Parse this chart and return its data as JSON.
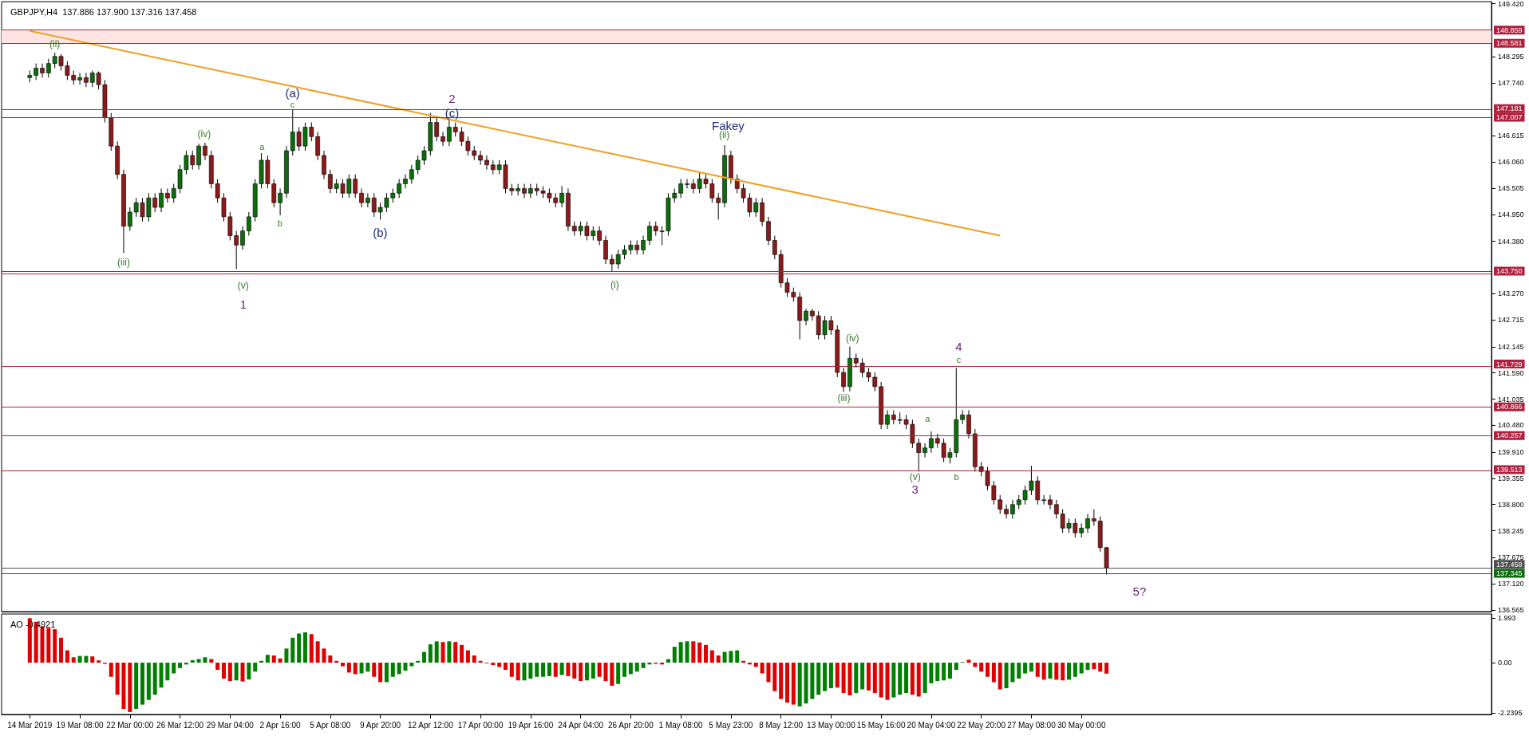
{
  "chart_data": [
    {
      "type": "candlestick",
      "title": "GBPJPY,H4  137.886 137.900 137.316 137.458",
      "tick_labels": "y",
      "ylim": [
        136.53,
        149.46
      ],
      "yticks": [
        {
          "value": 149.42,
          "label": "149.420"
        },
        148.295,
        {
          "value": 147.74,
          "label": "147.740"
        },
        146.615,
        {
          "value": 146.06,
          "label": "146.060"
        },
        145.505,
        {
          "value": 144.95,
          "label": "144.950"
        },
        {
          "value": 144.38,
          "label": "144.380"
        },
        {
          "value": 143.27,
          "label": "143.270"
        },
        142.715,
        142.145,
        {
          "value": 141.59,
          "label": "141.590"
        },
        141.035,
        {
          "value": 140.48,
          "label": "140.480"
        },
        {
          "value": 139.91,
          "label": "139.910"
        },
        139.355,
        {
          "value": 138.8,
          "label": "138.800"
        },
        138.245,
        137.675,
        {
          "value": 137.12,
          "label": "137.120"
        },
        136.565
      ],
      "categories": [
        null,
        null,
        null,
        null,
        null,
        null,
        null,
        null,
        null,
        null,
        null,
        null,
        null,
        null,
        null,
        null,
        null,
        null,
        null,
        null,
        null,
        null,
        null,
        null,
        null,
        null,
        null,
        null,
        null,
        null,
        null,
        null,
        null,
        null,
        null,
        null,
        null,
        null,
        null,
        null,
        null,
        null,
        null,
        null,
        null,
        null,
        null,
        null,
        null,
        null,
        null,
        null,
        null,
        null,
        null,
        null,
        null,
        null,
        null,
        null,
        null,
        null,
        null,
        null,
        null,
        null,
        null,
        null,
        null,
        null,
        null,
        null,
        null,
        null,
        null,
        null,
        null,
        null,
        null,
        null,
        null,
        null,
        null,
        null,
        null,
        null,
        null,
        null,
        null,
        null,
        null,
        null,
        null,
        null,
        null,
        null,
        null,
        null,
        null,
        null,
        null,
        null,
        null,
        null,
        null,
        null,
        null,
        null,
        null,
        null,
        null,
        null,
        null,
        null,
        null,
        null,
        null,
        null,
        null,
        null,
        null,
        null,
        null,
        null,
        null,
        null,
        null,
        null,
        null,
        null,
        null,
        null,
        null,
        null,
        null,
        null,
        null,
        null,
        null,
        null,
        null,
        null,
        null,
        null,
        null,
        null,
        null,
        null,
        null,
        null,
        null,
        null,
        null,
        null,
        null,
        null,
        null,
        null,
        null,
        null,
        null,
        null,
        null,
        null,
        null,
        null,
        null,
        null,
        null,
        null,
        null,
        null,
        null,
        null,
        null,
        null,
        null,
        null,
        null,
        null,
        null,
        null,
        null,
        null,
        null,
        null,
        null,
        null,
        null,
        null,
        null,
        null,
        null,
        null,
        null,
        null,
        null,
        null,
        null,
        null,
        null,
        null,
        null,
        null,
        null,
        null,
        null,
        null,
        null,
        null,
        null,
        null,
        null,
        null,
        null,
        null,
        null,
        null,
        null,
        null,
        null,
        null,
        null,
        null,
        null,
        null,
        null,
        null,
        null,
        null,
        null,
        null,
        null,
        null,
        null,
        null,
        null,
        null
      ],
      "ohlc": [
        null,
        null,
        null,
        null,
        [
          147.85,
          148.0,
          147.75,
          147.9
        ],
        [
          147.9,
          148.15,
          147.8,
          148.05
        ],
        [
          148.05,
          148.15,
          147.85,
          147.95
        ],
        [
          147.95,
          148.25,
          147.85,
          148.15
        ],
        [
          148.15,
          148.38,
          148.05,
          148.3
        ],
        [
          148.3,
          148.35,
          148.0,
          148.1
        ],
        [
          148.1,
          148.2,
          147.8,
          147.9
        ],
        [
          147.9,
          148.0,
          147.7,
          147.8
        ],
        [
          147.8,
          147.95,
          147.7,
          147.85
        ],
        [
          147.85,
          147.95,
          147.65,
          147.75
        ],
        [
          147.75,
          148.0,
          147.65,
          147.95
        ],
        [
          147.95,
          147.98,
          147.6,
          147.7
        ],
        [
          147.7,
          147.8,
          146.9,
          147.0
        ],
        [
          147.0,
          147.1,
          146.3,
          146.4
        ],
        [
          146.4,
          146.5,
          145.7,
          145.8
        ],
        [
          145.8,
          145.9,
          144.13,
          144.7
        ],
        [
          144.7,
          145.1,
          144.6,
          145.0
        ],
        [
          145.0,
          145.3,
          144.9,
          145.2
        ],
        [
          145.2,
          145.3,
          144.8,
          144.9
        ],
        [
          144.9,
          145.4,
          144.8,
          145.3
        ],
        [
          145.3,
          145.4,
          145.0,
          145.1
        ],
        [
          145.1,
          145.5,
          145.0,
          145.4
        ],
        [
          145.4,
          145.5,
          145.2,
          145.3
        ],
        [
          145.3,
          145.6,
          145.2,
          145.5
        ],
        [
          145.5,
          146.0,
          145.4,
          145.9
        ],
        [
          145.9,
          146.3,
          145.8,
          146.2
        ],
        [
          146.2,
          146.3,
          145.9,
          146.0
        ],
        [
          146.0,
          146.45,
          145.9,
          146.4
        ],
        [
          146.4,
          146.47,
          146.1,
          146.2
        ],
        [
          146.2,
          146.3,
          145.5,
          145.6
        ],
        [
          145.6,
          145.7,
          145.2,
          145.3
        ],
        [
          145.3,
          145.4,
          144.8,
          144.9
        ],
        [
          144.9,
          145.0,
          144.4,
          144.5
        ],
        [
          144.5,
          144.6,
          143.79,
          144.3
        ],
        [
          144.3,
          144.7,
          144.2,
          144.6
        ],
        [
          144.6,
          145.0,
          144.5,
          144.9
        ],
        [
          144.9,
          145.7,
          144.8,
          145.6
        ],
        [
          145.6,
          146.25,
          145.5,
          146.1
        ],
        [
          146.1,
          146.2,
          145.5,
          145.6
        ],
        [
          145.6,
          145.7,
          145.1,
          145.2
        ],
        [
          145.2,
          145.5,
          144.93,
          145.4
        ],
        [
          145.4,
          146.4,
          145.3,
          146.3
        ],
        [
          146.3,
          147.17,
          146.2,
          146.7
        ],
        [
          146.7,
          146.8,
          146.3,
          146.4
        ],
        [
          146.4,
          146.9,
          146.3,
          146.8
        ],
        [
          146.8,
          146.9,
          146.5,
          146.6
        ],
        [
          146.6,
          146.7,
          146.1,
          146.2
        ],
        [
          146.2,
          146.3,
          145.7,
          145.8
        ],
        [
          145.8,
          145.9,
          145.4,
          145.5
        ],
        [
          145.5,
          145.7,
          145.4,
          145.6
        ],
        [
          145.6,
          145.7,
          145.3,
          145.4
        ],
        [
          145.4,
          145.8,
          145.3,
          145.7
        ],
        [
          145.7,
          145.8,
          145.3,
          145.4
        ],
        [
          145.4,
          145.5,
          145.1,
          145.2
        ],
        [
          145.2,
          145.4,
          145.1,
          145.3
        ],
        [
          145.3,
          145.4,
          144.9,
          145.0
        ],
        [
          145.0,
          145.2,
          144.84,
          145.1
        ],
        [
          145.1,
          145.4,
          145.0,
          145.3
        ],
        [
          145.3,
          145.5,
          145.2,
          145.4
        ],
        [
          145.4,
          145.7,
          145.3,
          145.6
        ],
        [
          145.6,
          145.8,
          145.5,
          145.7
        ],
        [
          145.7,
          146.0,
          145.6,
          145.9
        ],
        [
          145.9,
          146.2,
          145.8,
          146.1
        ],
        [
          146.1,
          146.4,
          146.0,
          146.3
        ],
        [
          146.3,
          147.1,
          146.2,
          146.9
        ],
        [
          146.9,
          147.0,
          146.5,
          146.6
        ],
        [
          146.6,
          146.7,
          146.4,
          146.5
        ],
        [
          146.5,
          147.01,
          146.4,
          146.8
        ],
        [
          146.8,
          146.9,
          146.6,
          146.7
        ],
        [
          146.7,
          146.8,
          146.4,
          146.5
        ],
        [
          146.5,
          146.6,
          146.2,
          146.3
        ],
        [
          146.3,
          146.4,
          146.1,
          146.2
        ],
        [
          146.2,
          146.3,
          146.0,
          146.1
        ],
        [
          146.1,
          146.2,
          145.9,
          146.0
        ],
        [
          146.0,
          146.1,
          145.8,
          145.9
        ],
        [
          145.9,
          146.1,
          145.8,
          146.0
        ],
        [
          146.0,
          146.1,
          145.4,
          145.5
        ],
        [
          145.5,
          145.6,
          145.35,
          145.45
        ],
        [
          145.45,
          145.6,
          145.35,
          145.5
        ],
        [
          145.5,
          145.6,
          145.3,
          145.4
        ],
        [
          145.4,
          145.6,
          145.3,
          145.5
        ],
        [
          145.5,
          145.6,
          145.35,
          145.45
        ],
        [
          145.45,
          145.55,
          145.3,
          145.4
        ],
        [
          145.4,
          145.5,
          145.2,
          145.3
        ],
        [
          145.3,
          145.4,
          145.1,
          145.2
        ],
        [
          145.2,
          145.55,
          145.1,
          145.4
        ],
        [
          145.4,
          145.5,
          144.6,
          144.7
        ],
        [
          144.7,
          144.8,
          144.5,
          144.6
        ],
        [
          144.6,
          144.8,
          144.5,
          144.7
        ],
        [
          144.7,
          144.8,
          144.4,
          144.5
        ],
        [
          144.5,
          144.7,
          144.4,
          144.6
        ],
        [
          144.6,
          144.7,
          144.3,
          144.4
        ],
        [
          144.4,
          144.5,
          143.9,
          144.0
        ],
        [
          144.0,
          144.1,
          143.74,
          143.9
        ],
        [
          143.9,
          144.2,
          143.8,
          144.1
        ],
        [
          144.1,
          144.3,
          144.0,
          144.2
        ],
        [
          144.2,
          144.4,
          144.1,
          144.3
        ],
        [
          144.3,
          144.4,
          144.1,
          144.2
        ],
        [
          144.2,
          144.5,
          144.1,
          144.4
        ],
        [
          144.4,
          144.8,
          144.3,
          144.7
        ],
        [
          144.7,
          144.8,
          144.5,
          144.6
        ],
        [
          144.6,
          144.7,
          144.3,
          144.6
        ],
        [
          144.6,
          145.4,
          144.5,
          145.3
        ],
        [
          145.3,
          145.5,
          145.2,
          145.4
        ],
        [
          145.4,
          145.7,
          145.3,
          145.6
        ],
        [
          145.6,
          145.7,
          145.5,
          145.6
        ],
        [
          145.6,
          145.7,
          145.4,
          145.5
        ],
        [
          145.5,
          145.85,
          145.4,
          145.7
        ],
        [
          145.7,
          145.8,
          145.5,
          145.6
        ],
        [
          145.6,
          145.7,
          145.2,
          145.3
        ],
        [
          145.3,
          145.4,
          144.84,
          145.2
        ],
        [
          145.2,
          146.42,
          145.1,
          146.2
        ],
        [
          146.2,
          146.3,
          145.6,
          145.7
        ],
        [
          145.7,
          145.8,
          145.4,
          145.5
        ],
        [
          145.5,
          145.6,
          145.2,
          145.3
        ],
        [
          145.3,
          145.4,
          144.9,
          145.0
        ],
        [
          145.0,
          145.3,
          144.9,
          145.2
        ],
        [
          145.2,
          145.3,
          144.7,
          144.8
        ],
        [
          144.8,
          144.9,
          144.3,
          144.4
        ],
        [
          144.4,
          144.5,
          144.0,
          144.1
        ],
        [
          144.1,
          144.2,
          143.4,
          143.5
        ],
        [
          143.5,
          143.6,
          143.2,
          143.3
        ],
        [
          143.3,
          143.4,
          143.1,
          143.2
        ],
        [
          143.2,
          143.3,
          142.3,
          142.7
        ],
        [
          142.7,
          142.95,
          142.6,
          142.9
        ],
        [
          142.9,
          142.95,
          142.7,
          142.8
        ],
        [
          142.8,
          142.9,
          142.3,
          142.4
        ],
        [
          142.4,
          142.8,
          142.3,
          142.7
        ],
        [
          142.7,
          142.8,
          142.4,
          142.5
        ],
        [
          142.5,
          142.6,
          141.5,
          141.6
        ],
        [
          141.6,
          141.7,
          141.19,
          141.3
        ],
        [
          141.3,
          142.15,
          141.2,
          141.9
        ],
        [
          141.9,
          142.0,
          141.7,
          141.8
        ],
        [
          141.8,
          141.9,
          141.5,
          141.6
        ],
        [
          141.6,
          141.7,
          141.4,
          141.5
        ],
        [
          141.5,
          141.6,
          141.2,
          141.3
        ],
        [
          141.3,
          141.4,
          140.4,
          140.5
        ],
        [
          140.5,
          140.8,
          140.4,
          140.7
        ],
        [
          140.7,
          140.8,
          140.5,
          140.6
        ],
        [
          140.6,
          140.75,
          140.5,
          140.6
        ],
        [
          140.6,
          140.7,
          140.4,
          140.5
        ],
        [
          140.5,
          140.6,
          140.0,
          140.1
        ],
        [
          140.1,
          140.2,
          139.5,
          139.9
        ],
        [
          139.9,
          140.1,
          139.8,
          140.0
        ],
        [
          140.0,
          140.35,
          139.9,
          140.2
        ],
        [
          140.2,
          140.3,
          140.0,
          140.1
        ],
        [
          140.1,
          140.2,
          139.7,
          139.8
        ],
        [
          139.8,
          140.0,
          139.67,
          139.9
        ],
        [
          139.9,
          141.7,
          139.8,
          140.6
        ],
        [
          140.6,
          140.8,
          140.5,
          140.7
        ],
        [
          140.7,
          140.8,
          140.2,
          140.3
        ],
        [
          140.3,
          140.4,
          139.5,
          139.6
        ],
        [
          139.6,
          139.7,
          139.4,
          139.5
        ],
        [
          139.5,
          139.6,
          139.1,
          139.2
        ],
        [
          139.2,
          139.3,
          138.8,
          138.9
        ],
        [
          138.9,
          139.0,
          138.6,
          138.7
        ],
        [
          138.7,
          138.8,
          138.5,
          138.6
        ],
        [
          138.6,
          138.9,
          138.5,
          138.8
        ],
        [
          138.8,
          139.0,
          138.7,
          138.9
        ],
        [
          138.9,
          139.2,
          138.8,
          139.1
        ],
        [
          139.1,
          139.62,
          139.0,
          139.3
        ],
        [
          139.3,
          139.4,
          138.8,
          138.9
        ],
        [
          138.9,
          139.0,
          138.8,
          138.9
        ],
        [
          138.9,
          139.0,
          138.7,
          138.8
        ],
        [
          138.8,
          138.9,
          138.5,
          138.6
        ],
        [
          138.6,
          138.7,
          138.2,
          138.3
        ],
        [
          138.3,
          138.5,
          138.2,
          138.4
        ],
        [
          138.4,
          138.5,
          138.1,
          138.2
        ],
        [
          138.2,
          138.4,
          138.1,
          138.3
        ],
        [
          138.3,
          138.6,
          138.2,
          138.5
        ],
        [
          138.5,
          138.7,
          138.35,
          138.45
        ],
        [
          138.45,
          138.55,
          137.8,
          137.886
        ],
        [
          137.886,
          137.9,
          137.316,
          137.458
        ],
        null,
        null,
        null,
        null,
        null,
        null,
        null,
        null,
        null,
        null,
        null,
        null,
        null,
        null,
        null,
        null,
        null,
        null,
        null,
        null,
        null,
        null,
        null,
        null,
        null,
        null,
        null,
        null,
        null,
        null,
        null,
        null,
        null,
        null,
        null,
        null,
        null,
        null,
        null,
        null,
        null,
        null,
        null,
        null,
        null,
        null,
        null,
        null,
        null,
        null,
        null,
        null,
        null,
        null,
        null,
        null,
        null,
        null,
        null,
        null,
        null
      ],
      "series": [
        {
          "type": "line",
          "color": "#f0a020",
          "values": [
            null,
            null,
            null,
            null,
            148.84,
            null,
            null,
            null,
            null,
            null,
            null,
            null,
            null,
            null,
            null,
            null,
            null,
            null,
            null,
            null,
            null,
            null,
            null,
            null,
            null,
            null,
            null,
            null,
            null,
            null,
            null,
            null,
            null,
            null,
            null,
            null,
            null,
            null,
            null,
            null,
            null,
            null,
            null,
            null,
            null,
            null,
            null,
            null,
            null,
            null,
            null,
            null,
            null,
            null,
            null,
            null,
            null,
            null,
            null,
            null,
            null,
            null,
            null,
            null,
            null,
            null,
            null,
            null,
            null,
            null,
            null,
            null,
            null,
            null,
            null,
            null,
            null,
            null,
            null,
            null,
            null,
            null,
            null,
            null,
            null,
            null,
            null,
            null,
            null,
            null,
            null,
            null,
            null,
            null,
            null,
            null,
            null,
            null,
            null,
            null,
            null,
            null,
            null,
            null,
            null,
            null,
            null,
            null,
            null,
            null,
            null,
            null,
            null,
            null,
            null,
            null,
            null,
            null,
            null,
            null,
            null,
            null,
            null,
            null,
            null,
            null,
            null,
            null,
            null,
            null,
            null,
            null,
            null,
            null,
            null,
            null,
            null,
            null,
            null,
            null,
            null,
            null,
            null,
            null,
            null,
            null,
            null,
            null,
            null,
            null,
            null,
            null,
            null,
            null,
            null,
            null,
            null,
            null,
            null,
            144.5,
            null,
            null,
            null,
            null,
            null,
            null,
            null,
            null,
            null,
            null,
            null,
            null,
            null,
            null,
            null,
            null,
            null,
            null,
            null,
            null,
            null,
            null,
            null,
            null,
            null,
            null,
            null,
            null,
            null,
            null,
            null,
            null,
            null,
            null,
            null,
            null,
            null,
            null,
            null,
            null,
            null,
            null,
            null,
            null,
            null,
            null,
            null,
            null,
            null,
            null,
            null,
            null,
            null,
            null,
            null,
            null,
            null,
            null,
            null,
            null,
            null,
            null,
            null,
            null,
            null,
            null,
            null,
            null,
            null,
            null,
            null,
            null,
            null,
            null,
            null,
            null,
            null,
            null
          ]
        }
      ],
      "bands": [
        {
          "axis": "y",
          "from": 148.581,
          "to": 148.859,
          "color": "#ffe4e4"
        }
      ],
      "ref_lines": [
        {
          "axis": "y",
          "value": 148.859,
          "label": "148.859",
          "color": "#b0203e"
        },
        {
          "axis": "y",
          "value": 148.581,
          "label": "148.581",
          "color": "#b0203e"
        },
        {
          "axis": "y",
          "value": 147.181,
          "label": "147.181",
          "color": "#b0203e"
        },
        {
          "axis": "y",
          "value": 147.007,
          "label": "147.007",
          "color": "#b0203e"
        },
        {
          "axis": "y",
          "value": 143.75,
          "label": "143.750",
          "color": "#b0203e"
        },
        {
          "axis": "y",
          "value": 143.7,
          "label": null,
          "color": "#b0203e"
        },
        {
          "axis": "y",
          "value": 141.729,
          "label": "141.729",
          "color": "#b0203e"
        },
        {
          "axis": "y",
          "value": 140.866,
          "label": "140.866",
          "color": "#b0203e"
        },
        {
          "axis": "y",
          "value": 140.257,
          "label": "140.257",
          "color": "#b0203e"
        },
        {
          "axis": "y",
          "value": 139.513,
          "label": "139.513",
          "color": "#b0203e"
        },
        {
          "axis": "y",
          "value": 137.458,
          "label": "137.458",
          "color": "#505050"
        },
        {
          "axis": "y",
          "value": 137.345,
          "label": "137.345",
          "color": "#106a10"
        }
      ],
      "annotations": [
        "(ii)",
        "(iii)",
        "(iv)",
        "(v)",
        "1",
        "a",
        "b",
        "c",
        "(a)",
        "(b)",
        "2",
        "(c)",
        "(i)",
        "Fakey",
        "(ii)",
        "(iii)",
        "(iv)",
        "(v)",
        "3",
        "a",
        "b",
        "c",
        "4",
        "5?"
      ]
    },
    {
      "type": "bar",
      "title": "AO -0.4921",
      "ylim": [
        -2.31,
        2.17
      ],
      "yticks": [
        1.993,
        {
          "value": 0,
          "label": "0.00"
        },
        -2.2395
      ],
      "categories": [
        null,
        null,
        null,
        null,
        "14 Mar 2019",
        null,
        null,
        null,
        null,
        null,
        null,
        null,
        "19 Mar 08:00",
        null,
        null,
        null,
        null,
        null,
        null,
        null,
        "22 Mar 00:00",
        null,
        null,
        null,
        null,
        null,
        null,
        null,
        "26 Mar 12:00",
        null,
        null,
        null,
        null,
        null,
        null,
        null,
        "29 Mar 04:00",
        null,
        null,
        null,
        null,
        null,
        null,
        null,
        "2 Apr 16:00",
        null,
        null,
        null,
        null,
        null,
        null,
        null,
        "5 Apr 08:00",
        null,
        null,
        null,
        null,
        null,
        null,
        null,
        "9 Apr 20:00",
        null,
        null,
        null,
        null,
        null,
        null,
        null,
        "12 Apr 12:00",
        null,
        null,
        null,
        null,
        null,
        null,
        null,
        "17 Apr 00:00",
        null,
        null,
        null,
        null,
        null,
        null,
        null,
        "19 Apr 16:00",
        null,
        null,
        null,
        null,
        null,
        null,
        null,
        "24 Apr 04:00",
        null,
        null,
        null,
        null,
        null,
        null,
        null,
        "26 Apr 20:00",
        null,
        null,
        null,
        null,
        null,
        null,
        null,
        "1 May 08:00",
        null,
        null,
        null,
        null,
        null,
        null,
        null,
        "5 May 23:00",
        null,
        null,
        null,
        null,
        null,
        null,
        null,
        "8 May 12:00",
        null,
        null,
        null,
        null,
        null,
        null,
        null,
        "13 May 00:00",
        null,
        null,
        null,
        null,
        null,
        null,
        null,
        "15 May 16:00",
        null,
        null,
        null,
        null,
        null,
        null,
        null,
        "20 May 04:00",
        null,
        null,
        null,
        null,
        null,
        null,
        null,
        "22 May 20:00",
        null,
        null,
        null,
        null,
        null,
        null,
        null,
        "27 May 08:00",
        null,
        null,
        null,
        null,
        null,
        null,
        null,
        "30 May 00:00",
        null,
        null,
        null,
        null,
        null,
        null,
        null,
        null,
        null,
        null,
        null,
        null,
        null,
        null,
        null,
        null,
        null,
        null,
        null,
        null,
        null,
        null,
        null,
        null,
        null,
        null,
        null,
        null,
        null,
        null,
        null,
        null,
        null,
        null,
        null,
        null,
        null,
        null,
        null,
        null,
        null,
        null,
        null,
        null,
        null,
        null,
        null,
        null,
        null,
        null,
        null,
        null,
        null,
        null,
        null,
        null,
        null,
        null,
        null,
        null,
        null,
        null,
        null,
        null,
        null
      ],
      "values": [
        null,
        null,
        null,
        null,
        1.98,
        1.82,
        1.62,
        1.55,
        1.49,
        1.11,
        0.55,
        0.24,
        0.3,
        0.3,
        0.28,
        0.1,
        -0.05,
        -0.63,
        -1.43,
        -2.06,
        -2.2,
        -2.06,
        -1.87,
        -1.66,
        -1.43,
        -1.11,
        -0.79,
        -0.48,
        -0.24,
        -0.08,
        0.11,
        0.16,
        0.24,
        0.16,
        -0.32,
        -0.71,
        -0.82,
        -0.79,
        -0.84,
        -0.75,
        -0.4,
        0.08,
        0.35,
        0.32,
        0.19,
        0.63,
        1.11,
        1.3,
        1.35,
        1.27,
        0.95,
        0.63,
        0.32,
        0.08,
        -0.16,
        -0.44,
        -0.51,
        -0.48,
        -0.4,
        -0.63,
        -0.87,
        -0.87,
        -0.63,
        -0.51,
        -0.36,
        -0.16,
        0.08,
        0.48,
        0.82,
        0.95,
        0.92,
        0.95,
        0.92,
        0.79,
        0.55,
        0.32,
        0.08,
        -0.03,
        -0.11,
        -0.19,
        -0.32,
        -0.63,
        -0.79,
        -0.79,
        -0.71,
        -0.63,
        -0.63,
        -0.6,
        -0.63,
        -0.55,
        -0.6,
        -0.71,
        -0.82,
        -0.79,
        -0.71,
        -0.63,
        -0.82,
        -1.03,
        -0.95,
        -0.63,
        -0.51,
        -0.4,
        -0.24,
        -0.08,
        -0.05,
        -0.08,
        0.16,
        0.71,
        0.92,
        0.95,
        0.95,
        0.9,
        0.79,
        0.55,
        0.32,
        0.48,
        0.52,
        0.55,
        0.08,
        -0.08,
        -0.19,
        -0.48,
        -0.87,
        -1.27,
        -1.62,
        -1.78,
        -1.87,
        -1.95,
        -1.82,
        -1.62,
        -1.43,
        -1.27,
        -1.14,
        -1.11,
        -1.35,
        -1.46,
        -1.35,
        -1.19,
        -1.24,
        -1.35,
        -1.55,
        -1.66,
        -1.55,
        -1.43,
        -1.35,
        -1.43,
        -1.51,
        -1.35,
        -0.92,
        -0.82,
        -0.79,
        -0.71,
        -0.32,
        0.03,
        0.13,
        -0.19,
        -0.4,
        -0.63,
        -0.87,
        -1.19,
        -1.14,
        -0.87,
        -0.71,
        -0.48,
        -0.4,
        -0.63,
        -0.76,
        -0.71,
        -0.76,
        -0.79,
        -0.76,
        -0.63,
        -0.48,
        -0.32,
        -0.29,
        -0.4,
        -0.49,
        null,
        null,
        null,
        null,
        null,
        null,
        null,
        null,
        null,
        null,
        null,
        null,
        null,
        null,
        null,
        null,
        null,
        null,
        null,
        null,
        null,
        null,
        null,
        null,
        null,
        null,
        null,
        null,
        null,
        null,
        null,
        null,
        null,
        null,
        null,
        null,
        null,
        null,
        null,
        null,
        null,
        null,
        null,
        null,
        null,
        null,
        null,
        null,
        null,
        null,
        null,
        null,
        null,
        null,
        null,
        null,
        null,
        null,
        null,
        null,
        null
      ],
      "colors": [
        null,
        null,
        null,
        null,
        "#e00000",
        "#e00000",
        "#e00000",
        "#e00000",
        "#e00000",
        "#e00000",
        "#e00000",
        "#e00000",
        "#008000",
        "#008000",
        "#e00000",
        "#e00000",
        "#e00000",
        "#e00000",
        "#e00000",
        "#e00000",
        "#e00000",
        "#008000",
        "#008000",
        "#008000",
        "#008000",
        "#008000",
        "#008000",
        "#008000",
        "#008000",
        "#008000",
        "#008000",
        "#008000",
        "#008000",
        "#e00000",
        "#e00000",
        "#e00000",
        "#e00000",
        "#008000",
        "#e00000",
        "#008000",
        "#008000",
        "#008000",
        "#008000",
        "#e00000",
        "#e00000",
        "#008000",
        "#008000",
        "#008000",
        "#008000",
        "#e00000",
        "#e00000",
        "#e00000",
        "#e00000",
        "#e00000",
        "#e00000",
        "#e00000",
        "#e00000",
        "#008000",
        "#008000",
        "#e00000",
        "#e00000",
        "#008000",
        "#008000",
        "#008000",
        "#008000",
        "#008000",
        "#008000",
        "#008000",
        "#008000",
        "#008000",
        "#e00000",
        "#008000",
        "#e00000",
        "#e00000",
        "#e00000",
        "#e00000",
        "#e00000",
        "#e00000",
        "#e00000",
        "#e00000",
        "#e00000",
        "#e00000",
        "#e00000",
        "#008000",
        "#008000",
        "#008000",
        "#008000",
        "#008000",
        "#e00000",
        "#008000",
        "#e00000",
        "#e00000",
        "#e00000",
        "#008000",
        "#008000",
        "#e00000",
        "#e00000",
        "#e00000",
        "#008000",
        "#008000",
        "#008000",
        "#008000",
        "#008000",
        "#008000",
        "#e00000",
        "#e00000",
        "#008000",
        "#008000",
        "#008000",
        "#008000",
        "#e00000",
        "#e00000",
        "#e00000",
        "#e00000",
        "#e00000",
        "#008000",
        "#008000",
        "#008000",
        "#e00000",
        "#e00000",
        "#e00000",
        "#e00000",
        "#e00000",
        "#e00000",
        "#e00000",
        "#e00000",
        "#e00000",
        "#008000",
        "#008000",
        "#008000",
        "#008000",
        "#008000",
        "#008000",
        "#e00000",
        "#e00000",
        "#e00000",
        "#008000",
        "#008000",
        "#e00000",
        "#e00000",
        "#e00000",
        "#e00000",
        "#008000",
        "#008000",
        "#008000",
        "#e00000",
        "#e00000",
        "#008000",
        "#008000",
        "#008000",
        "#008000",
        "#008000",
        "#008000",
        "#008000",
        "#e00000",
        "#e00000",
        "#e00000",
        "#e00000",
        "#e00000",
        "#e00000",
        "#008000",
        "#008000",
        "#008000",
        "#008000",
        "#008000",
        "#e00000",
        "#e00000",
        "#008000",
        "#e00000",
        "#e00000",
        "#008000",
        "#008000",
        "#008000",
        "#008000",
        "#e00000",
        "#e00000",
        "#e00000",
        null,
        null,
        null,
        null,
        null,
        null,
        null,
        null,
        null,
        null,
        null,
        null,
        null,
        null,
        null,
        null,
        null,
        null,
        null,
        null,
        null,
        null,
        null,
        null,
        null,
        null,
        null,
        null,
        null,
        null,
        null,
        null,
        null,
        null,
        null,
        null,
        null,
        null,
        null,
        null,
        null,
        null,
        null,
        null,
        null,
        null,
        null,
        null,
        null,
        null,
        null,
        null,
        null,
        null,
        null,
        null,
        null,
        null,
        null,
        null,
        null
      ]
    }
  ]
}
